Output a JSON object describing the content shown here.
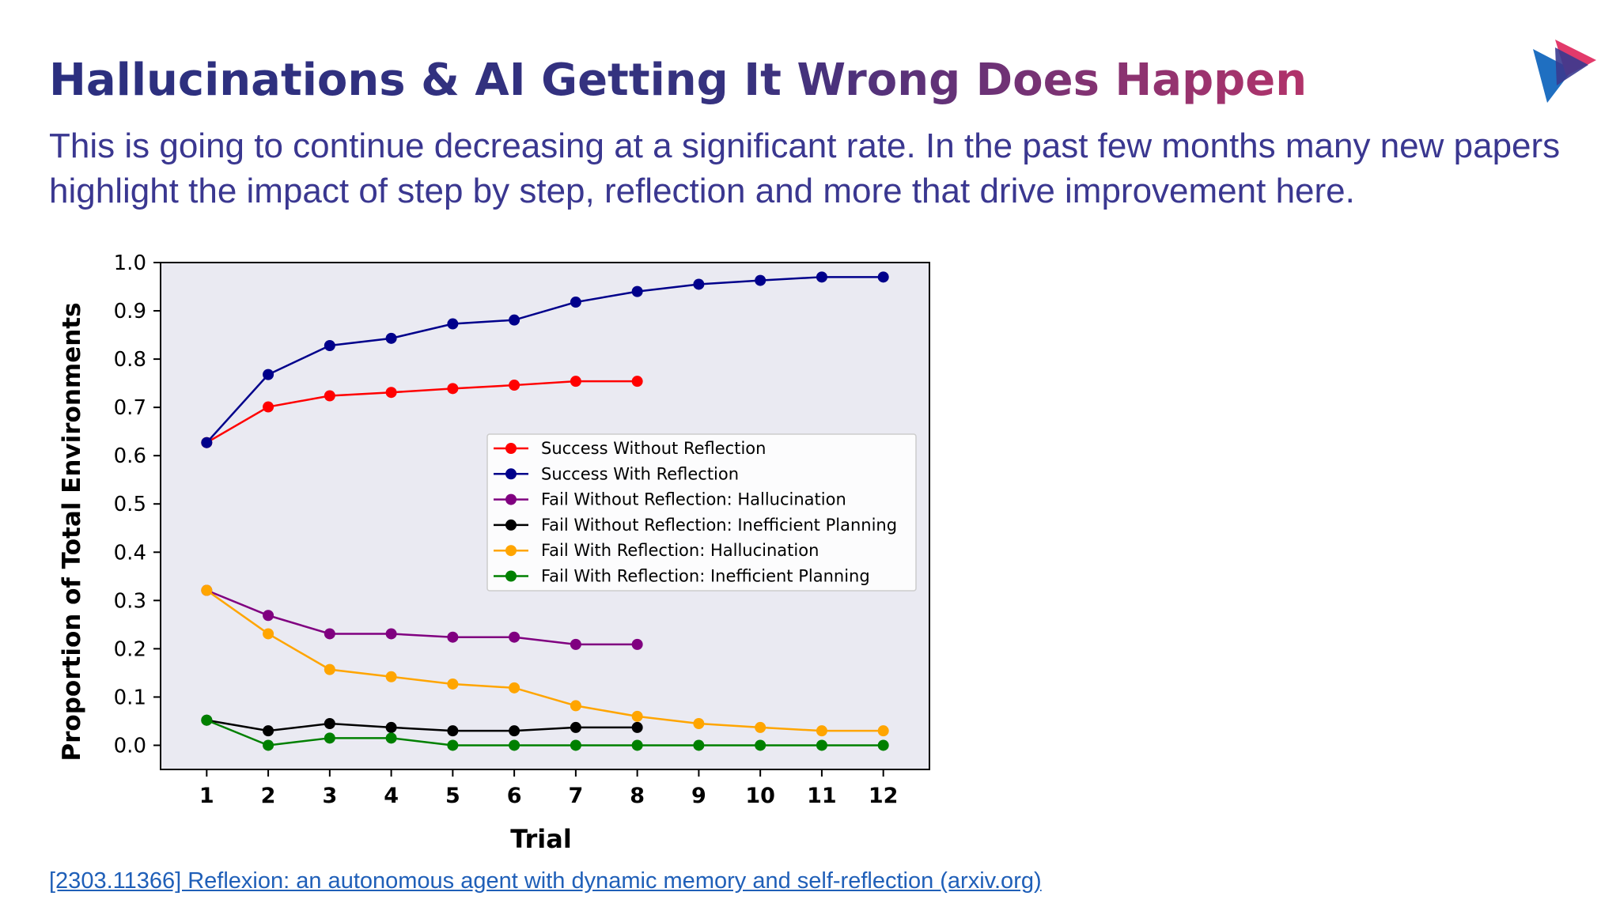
{
  "slide": {
    "title": "Hallucinations & AI Getting It Wrong Does Happen",
    "subtitle": "This is going to continue decreasing at a significant rate. In the past few months many new papers highlight the impact of step by step, reflection and more that drive improvement here.",
    "source_link": "[2303.11366] Reflexion: an autonomous agent with dynamic memory and self-reflection (arxiv.org)",
    "logo_icon": "play-triangle-logo-icon"
  },
  "chart_data": {
    "type": "line",
    "title": "",
    "xlabel": "Trial",
    "ylabel": "Proportion of Total Environments",
    "xlim": [
      0.25,
      12.75
    ],
    "ylim": [
      -0.05,
      1.0
    ],
    "x_ticks": [
      1,
      2,
      3,
      4,
      5,
      6,
      7,
      8,
      9,
      10,
      11,
      12
    ],
    "y_ticks": [
      "0.0",
      "0.1",
      "0.2",
      "0.3",
      "0.4",
      "0.5",
      "0.6",
      "0.7",
      "0.8",
      "0.9",
      "1.0"
    ],
    "grid": false,
    "legend_position": "center-right",
    "background_color": "#eaeaf2",
    "series": [
      {
        "name": "Success Without Reflection",
        "color": "#ff0000",
        "x": [
          1,
          2,
          3,
          4,
          5,
          6,
          7,
          8
        ],
        "values": [
          0.627,
          0.701,
          0.724,
          0.731,
          0.739,
          0.746,
          0.754,
          0.754
        ]
      },
      {
        "name": "Success With Reflection",
        "color": "#00008b",
        "x": [
          1,
          2,
          3,
          4,
          5,
          6,
          7,
          8,
          9,
          10,
          11,
          12
        ],
        "values": [
          0.627,
          0.768,
          0.828,
          0.843,
          0.873,
          0.881,
          0.918,
          0.94,
          0.955,
          0.963,
          0.97,
          0.97
        ]
      },
      {
        "name": "Fail Without Reflection: Hallucination",
        "color": "#800080",
        "x": [
          1,
          2,
          3,
          4,
          5,
          6,
          7,
          8
        ],
        "values": [
          0.321,
          0.269,
          0.231,
          0.231,
          0.224,
          0.224,
          0.209,
          0.209
        ]
      },
      {
        "name": "Fail Without Reflection: Inefficient Planning",
        "color": "#000000",
        "x": [
          1,
          2,
          3,
          4,
          5,
          6,
          7,
          8
        ],
        "values": [
          0.052,
          0.03,
          0.045,
          0.037,
          0.03,
          0.03,
          0.037,
          0.037
        ]
      },
      {
        "name": "Fail With Reflection: Hallucination",
        "color": "#ffa500",
        "x": [
          1,
          2,
          3,
          4,
          5,
          6,
          7,
          8,
          9,
          10,
          11,
          12
        ],
        "values": [
          0.321,
          0.231,
          0.157,
          0.142,
          0.127,
          0.119,
          0.082,
          0.06,
          0.045,
          0.037,
          0.03,
          0.03
        ]
      },
      {
        "name": "Fail With Reflection: Inefficient Planning",
        "color": "#008000",
        "x": [
          1,
          2,
          3,
          4,
          5,
          6,
          7,
          8,
          9,
          10,
          11,
          12
        ],
        "values": [
          0.052,
          0.0,
          0.015,
          0.015,
          0.0,
          0.0,
          0.0,
          0.0,
          0.0,
          0.0,
          0.0,
          0.0
        ]
      }
    ]
  }
}
